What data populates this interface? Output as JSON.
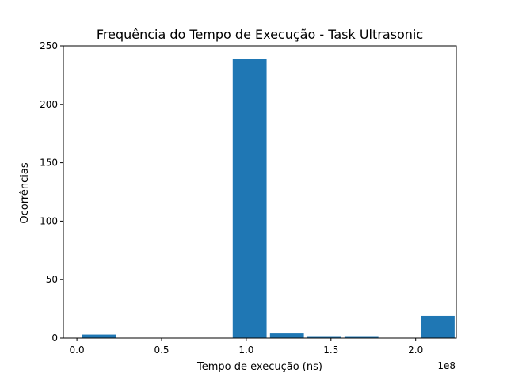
{
  "chart_data": {
    "type": "bar",
    "title": "Frequência do Tempo de Execução - Task Ultrasonic",
    "xlabel": "Tempo de execução (ns)",
    "ylabel": "Ocorrências",
    "x_offset_label": "1e8",
    "xlim": [
      -0.08,
      2.24
    ],
    "ylim": [
      0,
      250
    ],
    "x_ticks": [
      0.0,
      0.5,
      1.0,
      1.5,
      2.0
    ],
    "x_tick_labels": [
      "0.0",
      "0.5",
      "1.0",
      "1.5",
      "2.0"
    ],
    "y_ticks": [
      0,
      50,
      100,
      150,
      200,
      250
    ],
    "y_tick_labels": [
      "0",
      "50",
      "100",
      "150",
      "200",
      "250"
    ],
    "bins": [
      {
        "x_start": 0.03,
        "x_end": 0.23,
        "value": 3
      },
      {
        "x_start": 0.92,
        "x_end": 1.12,
        "value": 239
      },
      {
        "x_start": 1.14,
        "x_end": 1.34,
        "value": 4
      },
      {
        "x_start": 1.36,
        "x_end": 1.56,
        "value": 1
      },
      {
        "x_start": 1.58,
        "x_end": 1.78,
        "value": 1
      },
      {
        "x_start": 2.03,
        "x_end": 2.23,
        "value": 19
      }
    ],
    "bar_color": "#1f77b4",
    "grid": false
  }
}
